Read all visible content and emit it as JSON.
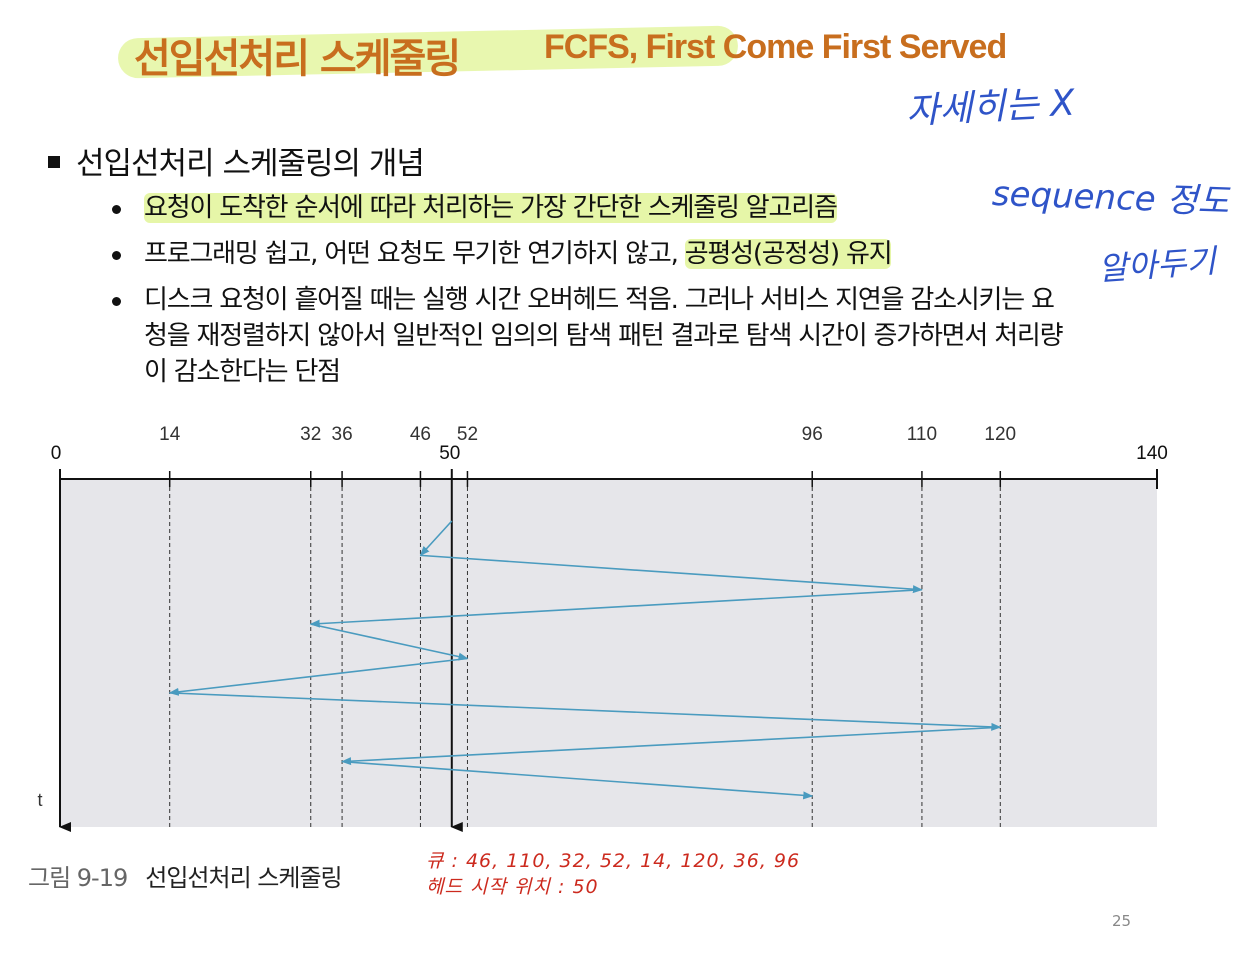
{
  "title": {
    "korean": "선입선처리 스케줄링",
    "english": "FCFS, First Come First Served"
  },
  "section": {
    "heading": "선입선처리 스케줄링의 개념"
  },
  "bullets": [
    {
      "highlighted": "요청이 도착한 순서에 따라 처리하는 가장 간단한 스케줄링 알고리즘",
      "plain": ""
    },
    {
      "plain": "프로그래밍 쉽고, 어떤 요청도 무기한 연기하지 않고, ",
      "highlighted": "공평성(공정성) 유지"
    },
    {
      "plain": "디스크 요청이 흩어질 때는 실행 시간 오버헤드 적음. 그러나 서비스 지연을 감소시키는 요청을 재정렬하지 않아서 일반적인 임의의 탐색 패턴 결과로 탐색 시간이 증가하면서 처리량이 감소한다는 단점",
      "highlighted": ""
    }
  ],
  "handwriting": {
    "note1": "자세히는 X",
    "note2": "sequence 정도",
    "note3": "알아두기"
  },
  "chart_data": {
    "type": "line",
    "title": "",
    "start_label": "0",
    "end_label": "140",
    "tick_labels": [
      "14",
      "32",
      "36",
      "46",
      "52",
      "96",
      "110",
      "120"
    ],
    "head_label": "50",
    "time_label": "t",
    "xlim": [
      0,
      140
    ],
    "head_start": 50,
    "sequence": [
      50,
      46,
      110,
      32,
      52,
      14,
      120,
      36,
      96
    ],
    "colors": {
      "path": "#4a9bbf",
      "background": "#e6e6ea",
      "axis": "#111111"
    }
  },
  "caption": {
    "number": "그림 9-19",
    "text": "선입선처리 스케줄링"
  },
  "queue_note": {
    "line1": "큐 : 46, 110, 32, 52, 14, 120, 36, 96",
    "line2": "헤드 시작 위치 : 50"
  },
  "page_number": "25"
}
